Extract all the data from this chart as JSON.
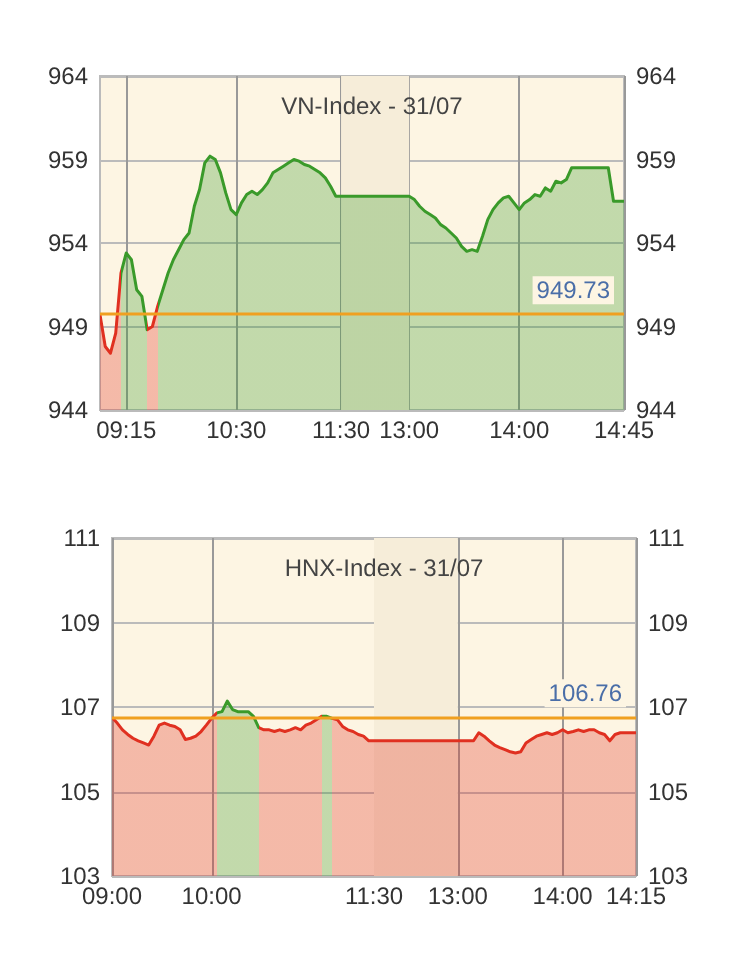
{
  "chart_data": [
    {
      "type": "area",
      "title": "VN-Index - 31/07",
      "categories": [
        null,
        null,
        null,
        null,
        null,
        "09:15",
        null,
        null,
        null,
        null,
        null,
        null,
        null,
        null,
        null,
        null,
        null,
        null,
        null,
        null,
        null,
        null,
        null,
        null,
        null,
        null,
        "10:30",
        null,
        null,
        null,
        null,
        null,
        null,
        null,
        null,
        null,
        null,
        null,
        null,
        null,
        null,
        null,
        null,
        null,
        null,
        null,
        "11:30",
        null,
        null,
        null,
        null,
        null,
        null,
        null,
        null,
        null,
        null,
        null,
        null,
        "13:00",
        null,
        null,
        null,
        null,
        null,
        null,
        null,
        null,
        null,
        null,
        null,
        null,
        null,
        null,
        null,
        null,
        null,
        null,
        null,
        null,
        "14:00",
        null,
        null,
        null,
        null,
        null,
        null,
        null,
        null,
        null,
        null,
        null,
        null,
        null,
        null,
        null,
        null,
        null,
        null,
        null,
        "14:45"
      ],
      "series": [
        {
          "values": [
            949.7,
            947.8,
            947.4,
            948.6,
            952.2,
            953.4,
            953.0,
            951.2,
            950.8,
            948.8,
            949.0,
            950.2,
            951.2,
            952.2,
            953.0,
            953.6,
            954.2,
            954.6,
            956.2,
            957.2,
            958.8,
            959.2,
            959.0,
            958.2,
            957.0,
            956.0,
            955.7,
            956.4,
            956.9,
            957.1,
            956.9,
            957.2,
            957.6,
            958.2,
            958.4,
            958.6,
            958.8,
            959.0,
            958.9,
            958.7,
            958.6,
            958.4,
            958.2,
            957.9,
            957.4,
            956.8,
            956.8,
            956.8,
            956.8,
            956.8,
            956.8,
            956.8,
            956.8,
            956.8,
            956.8,
            956.8,
            956.8,
            956.8,
            956.8,
            956.8,
            956.6,
            956.2,
            955.9,
            955.7,
            955.5,
            955.1,
            954.9,
            954.6,
            954.3,
            953.8,
            953.5,
            953.6,
            953.5,
            954.4,
            955.4,
            956.0,
            956.4,
            956.7,
            956.8,
            956.4,
            956.0,
            956.4,
            956.6,
            956.9,
            956.8,
            957.3,
            957.1,
            957.7,
            957.6,
            957.8,
            958.5,
            958.5,
            958.5,
            958.5,
            958.5,
            958.5,
            958.5,
            958.5,
            956.5,
            956.5,
            956.5
          ],
          "colors": [
            "#e03020",
            "#e03020",
            "#e03020",
            "#e03020",
            "#3a9a2a",
            "#3a9a2a",
            "#3a9a2a",
            "#3a9a2a",
            "#3a9a2a",
            "#e03020",
            "#e03020",
            "#3a9a2a",
            "#3a9a2a",
            "#3a9a2a",
            "#3a9a2a",
            "#3a9a2a",
            "#3a9a2a",
            "#3a9a2a",
            "#3a9a2a",
            "#3a9a2a",
            "#3a9a2a",
            "#3a9a2a",
            "#3a9a2a",
            "#3a9a2a",
            "#3a9a2a",
            "#3a9a2a",
            "#3a9a2a",
            "#3a9a2a",
            "#3a9a2a",
            "#3a9a2a",
            "#3a9a2a",
            "#3a9a2a",
            "#3a9a2a",
            "#3a9a2a",
            "#3a9a2a",
            "#3a9a2a",
            "#3a9a2a",
            "#3a9a2a",
            "#3a9a2a",
            "#3a9a2a",
            "#3a9a2a",
            "#3a9a2a",
            "#3a9a2a",
            "#3a9a2a",
            "#3a9a2a",
            "#3a9a2a",
            "#3a9a2a",
            "#3a9a2a",
            "#3a9a2a",
            "#3a9a2a",
            "#3a9a2a",
            "#3a9a2a",
            "#3a9a2a",
            "#3a9a2a",
            "#3a9a2a",
            "#3a9a2a",
            "#3a9a2a",
            "#3a9a2a",
            "#3a9a2a",
            "#3a9a2a",
            "#3a9a2a",
            "#3a9a2a",
            "#3a9a2a",
            "#3a9a2a",
            "#3a9a2a",
            "#3a9a2a",
            "#3a9a2a",
            "#3a9a2a",
            "#3a9a2a",
            "#3a9a2a",
            "#3a9a2a",
            "#3a9a2a",
            "#3a9a2a",
            "#3a9a2a",
            "#3a9a2a",
            "#3a9a2a",
            "#3a9a2a",
            "#3a9a2a",
            "#3a9a2a",
            "#3a9a2a",
            "#3a9a2a",
            "#3a9a2a",
            "#3a9a2a",
            "#3a9a2a",
            "#3a9a2a",
            "#3a9a2a",
            "#3a9a2a",
            "#3a9a2a",
            "#3a9a2a",
            "#3a9a2a",
            "#3a9a2a",
            "#3a9a2a",
            "#3a9a2a",
            "#3a9a2a",
            "#3a9a2a",
            "#3a9a2a",
            "#3a9a2a",
            "#3a9a2a",
            "#3a9a2a",
            "#3a9a2a",
            "#3a9a2a"
          ]
        }
      ],
      "ylim": [
        944,
        964
      ],
      "yticks": [
        944,
        949,
        954,
        959,
        964
      ],
      "y2lim": [
        944,
        964
      ],
      "y2ticks": [
        944,
        949,
        954,
        959,
        964
      ],
      "ref_lines": [
        {
          "axis": "y",
          "value": 949.73,
          "label": "949.73",
          "color": "#f0a020"
        }
      ],
      "bands": [
        {
          "axis": "x",
          "from": "11:30",
          "to": "13:00",
          "color": "#f6edd9"
        }
      ],
      "grid": true,
      "marker": "none"
    },
    {
      "type": "area",
      "title": "HNX-Index - 31/07",
      "categories": [
        "09:00",
        null,
        null,
        null,
        null,
        null,
        null,
        null,
        null,
        null,
        null,
        null,
        null,
        null,
        null,
        null,
        null,
        null,
        null,
        "10:00",
        null,
        null,
        null,
        null,
        null,
        null,
        null,
        null,
        null,
        null,
        null,
        null,
        null,
        null,
        null,
        null,
        null,
        null,
        null,
        null,
        null,
        null,
        null,
        null,
        null,
        null,
        null,
        null,
        null,
        null,
        "11:30",
        null,
        null,
        null,
        null,
        null,
        null,
        null,
        null,
        null,
        null,
        null,
        null,
        null,
        null,
        null,
        "13:00",
        null,
        null,
        null,
        null,
        null,
        null,
        null,
        null,
        null,
        null,
        null,
        null,
        null,
        null,
        null,
        null,
        null,
        null,
        null,
        "14:00",
        null,
        null,
        null,
        null,
        null,
        null,
        null,
        null,
        null,
        null,
        null,
        null,
        null,
        "14:15"
      ],
      "series": [
        {
          "values": [
            106.75,
            106.62,
            106.46,
            106.35,
            106.26,
            106.2,
            106.15,
            106.1,
            106.31,
            106.57,
            106.62,
            106.57,
            106.54,
            106.46,
            106.23,
            106.26,
            106.31,
            106.42,
            106.57,
            106.73,
            106.86,
            106.89,
            107.14,
            106.94,
            106.89,
            106.89,
            106.89,
            106.78,
            106.51,
            106.46,
            106.46,
            106.42,
            106.46,
            106.42,
            106.46,
            106.51,
            106.46,
            106.57,
            106.62,
            106.7,
            106.78,
            106.78,
            106.73,
            106.7,
            106.54,
            106.46,
            106.42,
            106.35,
            106.31,
            106.2,
            106.2,
            106.2,
            106.2,
            106.2,
            106.2,
            106.2,
            106.2,
            106.2,
            106.2,
            106.2,
            106.2,
            106.2,
            106.2,
            106.2,
            106.2,
            106.2,
            106.2,
            106.2,
            106.2,
            106.2,
            106.39,
            106.31,
            106.2,
            106.1,
            106.04,
            105.99,
            105.94,
            105.91,
            105.94,
            106.15,
            106.23,
            106.31,
            106.35,
            106.39,
            106.35,
            106.39,
            106.46,
            106.39,
            106.42,
            106.46,
            106.42,
            106.46,
            106.46,
            106.39,
            106.35,
            106.2,
            106.35,
            106.39,
            106.39,
            106.39,
            106.39
          ],
          "colors": [
            "#e03020",
            "#e03020",
            "#e03020",
            "#e03020",
            "#e03020",
            "#e03020",
            "#e03020",
            "#e03020",
            "#e03020",
            "#e03020",
            "#e03020",
            "#e03020",
            "#e03020",
            "#e03020",
            "#e03020",
            "#e03020",
            "#e03020",
            "#e03020",
            "#e03020",
            "#e03020",
            "#3a9a2a",
            "#3a9a2a",
            "#3a9a2a",
            "#3a9a2a",
            "#3a9a2a",
            "#3a9a2a",
            "#3a9a2a",
            "#3a9a2a",
            "#e03020",
            "#e03020",
            "#e03020",
            "#e03020",
            "#e03020",
            "#e03020",
            "#e03020",
            "#e03020",
            "#e03020",
            "#e03020",
            "#e03020",
            "#e03020",
            "#3a9a2a",
            "#3a9a2a",
            "#e03020",
            "#e03020",
            "#e03020",
            "#e03020",
            "#e03020",
            "#e03020",
            "#e03020",
            "#e03020",
            "#e03020",
            "#e03020",
            "#e03020",
            "#e03020",
            "#e03020",
            "#e03020",
            "#e03020",
            "#e03020",
            "#e03020",
            "#e03020",
            "#e03020",
            "#e03020",
            "#e03020",
            "#e03020",
            "#e03020",
            "#e03020",
            "#e03020",
            "#e03020",
            "#e03020",
            "#e03020",
            "#e03020",
            "#e03020",
            "#e03020",
            "#e03020",
            "#e03020",
            "#e03020",
            "#e03020",
            "#e03020",
            "#e03020",
            "#e03020",
            "#e03020",
            "#e03020",
            "#e03020",
            "#e03020",
            "#e03020",
            "#e03020",
            "#e03020",
            "#e03020",
            "#e03020",
            "#e03020",
            "#e03020",
            "#e03020",
            "#e03020",
            "#e03020",
            "#e03020",
            "#e03020",
            "#e03020",
            "#e03020",
            "#e03020",
            "#e03020",
            "#e03020"
          ]
        }
      ],
      "ylim": [
        103,
        111
      ],
      "yticks": [
        103,
        105,
        107,
        109,
        111
      ],
      "y2lim": [
        103,
        111
      ],
      "y2ticks": [
        103,
        105,
        107,
        109,
        111
      ],
      "ref_lines": [
        {
          "axis": "y",
          "value": 106.76,
          "label": "106.76",
          "color": "#f0a020"
        }
      ],
      "bands": [
        {
          "axis": "x",
          "from": "11:30",
          "to": "13:00",
          "color": "#f6edd9"
        }
      ],
      "grid": true,
      "marker": "none"
    }
  ]
}
